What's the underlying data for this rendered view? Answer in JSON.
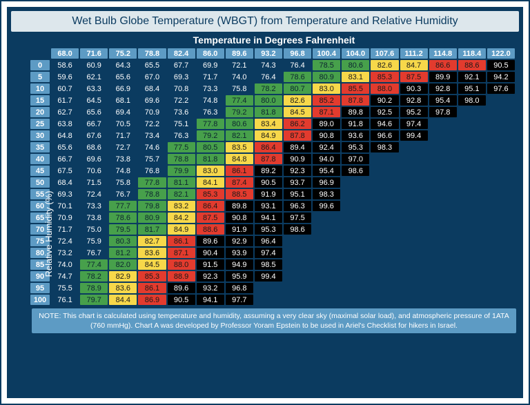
{
  "title": "Wet Bulb Globe Temperature (WBGT) from Temperature and Relative Humidity",
  "axis_top": "Temperature in Degrees Fahrenheit",
  "axis_left": "Relative Humidity (%)",
  "note": "NOTE: This chart is calculated using temperature and humidity, assuming a very clear sky (maximal solar load), and atmospheric pressure of 1ATA (760 mmHg). Chart A was developed by Professor Yoram Epstein to be used in Ariel's Checklist for hikers in Israel.",
  "colors": {
    "frame_bg": "#0b3b60",
    "title_bg": "#dde7ec",
    "title_fg": "#0b3b60",
    "header_bg": "#5d9bc4",
    "header_fg": "#ffffff",
    "none_bg": "#0b3b60",
    "none_fg": "#ffffff",
    "green_bg": "#47a04b",
    "yellow_bg": "#f7d84a",
    "red_bg": "#e23b2e",
    "black_bg": "#000000",
    "black_fg": "#ffffff"
  },
  "typography": {
    "title_fontsize": 16,
    "axis_fontsize": 14,
    "cell_fontsize": 11,
    "note_fontsize": 10.5,
    "font_family": "Arial"
  },
  "columns": [
    "68.0",
    "71.6",
    "75.2",
    "78.8",
    "82.4",
    "86.0",
    "89.6",
    "93.2",
    "96.8",
    "100.4",
    "104.0",
    "107.6",
    "111.2",
    "114.8",
    "118.4",
    "122.0"
  ],
  "row_headers": [
    "0",
    "5",
    "10",
    "15",
    "20",
    "25",
    "30",
    "35",
    "40",
    "45",
    "50",
    "55",
    "60",
    "65",
    "70",
    "75",
    "80",
    "85",
    "90",
    "95",
    "100"
  ],
  "cells": [
    [
      [
        "58.6",
        "none"
      ],
      [
        "60.9",
        "none"
      ],
      [
        "64.3",
        "none"
      ],
      [
        "65.5",
        "none"
      ],
      [
        "67.7",
        "none"
      ],
      [
        "69.9",
        "none"
      ],
      [
        "72.1",
        "none"
      ],
      [
        "74.3",
        "none"
      ],
      [
        "76.4",
        "none"
      ],
      [
        "78.5",
        "green"
      ],
      [
        "80.6",
        "green"
      ],
      [
        "82.6",
        "yellow"
      ],
      [
        "84.7",
        "yellow"
      ],
      [
        "86.6",
        "red"
      ],
      [
        "88.6",
        "red"
      ],
      [
        "90.5",
        "black"
      ]
    ],
    [
      [
        "59.6",
        "none"
      ],
      [
        "62.1",
        "none"
      ],
      [
        "65.6",
        "none"
      ],
      [
        "67.0",
        "none"
      ],
      [
        "69.3",
        "none"
      ],
      [
        "71.7",
        "none"
      ],
      [
        "74.0",
        "none"
      ],
      [
        "76.4",
        "none"
      ],
      [
        "78.6",
        "green"
      ],
      [
        "80.9",
        "green"
      ],
      [
        "83.1",
        "yellow"
      ],
      [
        "85.3",
        "red"
      ],
      [
        "87.5",
        "red"
      ],
      [
        "89.9",
        "black"
      ],
      [
        "92.1",
        "black"
      ],
      [
        "94.2",
        "black"
      ]
    ],
    [
      [
        "60.7",
        "none"
      ],
      [
        "63.3",
        "none"
      ],
      [
        "66.9",
        "none"
      ],
      [
        "68.4",
        "none"
      ],
      [
        "70.8",
        "none"
      ],
      [
        "73.3",
        "none"
      ],
      [
        "75.8",
        "none"
      ],
      [
        "78.2",
        "green"
      ],
      [
        "80.7",
        "green"
      ],
      [
        "83.0",
        "yellow"
      ],
      [
        "85.5",
        "red"
      ],
      [
        "88.0",
        "red"
      ],
      [
        "90.3",
        "black"
      ],
      [
        "92.8",
        "black"
      ],
      [
        "95.1",
        "black"
      ],
      [
        "97.6",
        "black"
      ]
    ],
    [
      [
        "61.7",
        "none"
      ],
      [
        "64.5",
        "none"
      ],
      [
        "68.1",
        "none"
      ],
      [
        "69.6",
        "none"
      ],
      [
        "72.2",
        "none"
      ],
      [
        "74.8",
        "none"
      ],
      [
        "77.4",
        "green"
      ],
      [
        "80.0",
        "green"
      ],
      [
        "82.6",
        "yellow"
      ],
      [
        "85.2",
        "red"
      ],
      [
        "87.8",
        "red"
      ],
      [
        "90.2",
        "black"
      ],
      [
        "92.8",
        "black"
      ],
      [
        "95.4",
        "black"
      ],
      [
        "98.0",
        "black"
      ],
      [
        "",
        "empty"
      ]
    ],
    [
      [
        "62.7",
        "none"
      ],
      [
        "65.6",
        "none"
      ],
      [
        "69.4",
        "none"
      ],
      [
        "70.9",
        "none"
      ],
      [
        "73.6",
        "none"
      ],
      [
        "76.3",
        "none"
      ],
      [
        "79.2",
        "green"
      ],
      [
        "81.8",
        "green"
      ],
      [
        "84.5",
        "yellow"
      ],
      [
        "87.1",
        "red"
      ],
      [
        "89.8",
        "black"
      ],
      [
        "92.5",
        "black"
      ],
      [
        "95.2",
        "black"
      ],
      [
        "97.8",
        "black"
      ],
      [
        "",
        "empty"
      ],
      [
        "",
        "empty"
      ]
    ],
    [
      [
        "63.8",
        "none"
      ],
      [
        "66.7",
        "none"
      ],
      [
        "70.5",
        "none"
      ],
      [
        "72.2",
        "none"
      ],
      [
        "75.1",
        "none"
      ],
      [
        "77.8",
        "green"
      ],
      [
        "80.6",
        "green"
      ],
      [
        "83.4",
        "yellow"
      ],
      [
        "86.2",
        "red"
      ],
      [
        "89.0",
        "black"
      ],
      [
        "91.8",
        "black"
      ],
      [
        "94.6",
        "black"
      ],
      [
        "97.4",
        "black"
      ],
      [
        "",
        "empty"
      ],
      [
        "",
        "empty"
      ],
      [
        "",
        "empty"
      ]
    ],
    [
      [
        "64.8",
        "none"
      ],
      [
        "67.6",
        "none"
      ],
      [
        "71.7",
        "none"
      ],
      [
        "73.4",
        "none"
      ],
      [
        "76.3",
        "none"
      ],
      [
        "79.2",
        "green"
      ],
      [
        "82.1",
        "green"
      ],
      [
        "84.9",
        "yellow"
      ],
      [
        "87.8",
        "red"
      ],
      [
        "90.8",
        "black"
      ],
      [
        "93.6",
        "black"
      ],
      [
        "96.6",
        "black"
      ],
      [
        "99.4",
        "black"
      ],
      [
        "",
        "empty"
      ],
      [
        "",
        "empty"
      ],
      [
        "",
        "empty"
      ]
    ],
    [
      [
        "65.6",
        "none"
      ],
      [
        "68.6",
        "none"
      ],
      [
        "72.7",
        "none"
      ],
      [
        "74.6",
        "none"
      ],
      [
        "77.5",
        "green"
      ],
      [
        "80.5",
        "green"
      ],
      [
        "83.5",
        "yellow"
      ],
      [
        "86.4",
        "red"
      ],
      [
        "89.4",
        "black"
      ],
      [
        "92.4",
        "black"
      ],
      [
        "95.3",
        "black"
      ],
      [
        "98.3",
        "black"
      ],
      [
        "",
        "empty"
      ],
      [
        "",
        "empty"
      ],
      [
        "",
        "empty"
      ],
      [
        "",
        "empty"
      ]
    ],
    [
      [
        "66.7",
        "none"
      ],
      [
        "69.6",
        "none"
      ],
      [
        "73.8",
        "none"
      ],
      [
        "75.7",
        "none"
      ],
      [
        "78.8",
        "green"
      ],
      [
        "81.8",
        "green"
      ],
      [
        "84.8",
        "yellow"
      ],
      [
        "87.8",
        "red"
      ],
      [
        "90.9",
        "black"
      ],
      [
        "94.0",
        "black"
      ],
      [
        "97.0",
        "black"
      ],
      [
        "",
        "empty"
      ],
      [
        "",
        "empty"
      ],
      [
        "",
        "empty"
      ],
      [
        "",
        "empty"
      ],
      [
        "",
        "empty"
      ]
    ],
    [
      [
        "67.5",
        "none"
      ],
      [
        "70.6",
        "none"
      ],
      [
        "74.8",
        "none"
      ],
      [
        "76.8",
        "none"
      ],
      [
        "79.9",
        "green"
      ],
      [
        "83.0",
        "yellow"
      ],
      [
        "86.1",
        "red"
      ],
      [
        "89.2",
        "black"
      ],
      [
        "92.3",
        "black"
      ],
      [
        "95.4",
        "black"
      ],
      [
        "98.6",
        "black"
      ],
      [
        "",
        "empty"
      ],
      [
        "",
        "empty"
      ],
      [
        "",
        "empty"
      ],
      [
        "",
        "empty"
      ],
      [
        "",
        "empty"
      ]
    ],
    [
      [
        "68.4",
        "none"
      ],
      [
        "71.5",
        "none"
      ],
      [
        "75.8",
        "none"
      ],
      [
        "77.8",
        "green"
      ],
      [
        "81.1",
        "green"
      ],
      [
        "84.1",
        "yellow"
      ],
      [
        "87.4",
        "red"
      ],
      [
        "90.5",
        "black"
      ],
      [
        "93.7",
        "black"
      ],
      [
        "96.9",
        "black"
      ],
      [
        "",
        "empty"
      ],
      [
        "",
        "empty"
      ],
      [
        "",
        "empty"
      ],
      [
        "",
        "empty"
      ],
      [
        "",
        "empty"
      ],
      [
        "",
        "empty"
      ]
    ],
    [
      [
        "69.3",
        "none"
      ],
      [
        "72.4",
        "none"
      ],
      [
        "76.7",
        "none"
      ],
      [
        "78.8",
        "green"
      ],
      [
        "82.1",
        "green"
      ],
      [
        "85.3",
        "red"
      ],
      [
        "88.5",
        "red"
      ],
      [
        "91.9",
        "black"
      ],
      [
        "95.1",
        "black"
      ],
      [
        "98.3",
        "black"
      ],
      [
        "",
        "empty"
      ],
      [
        "",
        "empty"
      ],
      [
        "",
        "empty"
      ],
      [
        "",
        "empty"
      ],
      [
        "",
        "empty"
      ],
      [
        "",
        "empty"
      ]
    ],
    [
      [
        "70.1",
        "none"
      ],
      [
        "73.3",
        "none"
      ],
      [
        "77.7",
        "green"
      ],
      [
        "79.8",
        "green"
      ],
      [
        "83.2",
        "yellow"
      ],
      [
        "86.4",
        "red"
      ],
      [
        "89.8",
        "black"
      ],
      [
        "93.1",
        "black"
      ],
      [
        "96.3",
        "black"
      ],
      [
        "99.6",
        "black"
      ],
      [
        "",
        "empty"
      ],
      [
        "",
        "empty"
      ],
      [
        "",
        "empty"
      ],
      [
        "",
        "empty"
      ],
      [
        "",
        "empty"
      ],
      [
        "",
        "empty"
      ]
    ],
    [
      [
        "70.9",
        "none"
      ],
      [
        "73.8",
        "none"
      ],
      [
        "78.6",
        "green"
      ],
      [
        "80.9",
        "green"
      ],
      [
        "84.2",
        "yellow"
      ],
      [
        "87.5",
        "red"
      ],
      [
        "90.8",
        "black"
      ],
      [
        "94.1",
        "black"
      ],
      [
        "97.5",
        "black"
      ],
      [
        "",
        "empty"
      ],
      [
        "",
        "empty"
      ],
      [
        "",
        "empty"
      ],
      [
        "",
        "empty"
      ],
      [
        "",
        "empty"
      ],
      [
        "",
        "empty"
      ],
      [
        "",
        "empty"
      ]
    ],
    [
      [
        "71.7",
        "none"
      ],
      [
        "75.0",
        "none"
      ],
      [
        "79.5",
        "green"
      ],
      [
        "81.7",
        "green"
      ],
      [
        "84.9",
        "yellow"
      ],
      [
        "88.6",
        "red"
      ],
      [
        "91.9",
        "black"
      ],
      [
        "95.3",
        "black"
      ],
      [
        "98.6",
        "black"
      ],
      [
        "",
        "empty"
      ],
      [
        "",
        "empty"
      ],
      [
        "",
        "empty"
      ],
      [
        "",
        "empty"
      ],
      [
        "",
        "empty"
      ],
      [
        "",
        "empty"
      ],
      [
        "",
        "empty"
      ]
    ],
    [
      [
        "72.4",
        "none"
      ],
      [
        "75.9",
        "none"
      ],
      [
        "80.3",
        "green"
      ],
      [
        "82.7",
        "yellow"
      ],
      [
        "86.1",
        "red"
      ],
      [
        "89.6",
        "black"
      ],
      [
        "92.9",
        "black"
      ],
      [
        "96.4",
        "black"
      ],
      [
        "",
        "empty"
      ],
      [
        "",
        "empty"
      ],
      [
        "",
        "empty"
      ],
      [
        "",
        "empty"
      ],
      [
        "",
        "empty"
      ],
      [
        "",
        "empty"
      ],
      [
        "",
        "empty"
      ],
      [
        "",
        "empty"
      ]
    ],
    [
      [
        "73.2",
        "none"
      ],
      [
        "76.7",
        "none"
      ],
      [
        "81.2",
        "green"
      ],
      [
        "83.6",
        "yellow"
      ],
      [
        "87.1",
        "red"
      ],
      [
        "90.4",
        "black"
      ],
      [
        "93.9",
        "black"
      ],
      [
        "97.4",
        "black"
      ],
      [
        "",
        "empty"
      ],
      [
        "",
        "empty"
      ],
      [
        "",
        "empty"
      ],
      [
        "",
        "empty"
      ],
      [
        "",
        "empty"
      ],
      [
        "",
        "empty"
      ],
      [
        "",
        "empty"
      ],
      [
        "",
        "empty"
      ]
    ],
    [
      [
        "74.0",
        "none"
      ],
      [
        "77.4",
        "green"
      ],
      [
        "82.0",
        "green"
      ],
      [
        "84.5",
        "yellow"
      ],
      [
        "88.0",
        "red"
      ],
      [
        "91.5",
        "black"
      ],
      [
        "94.9",
        "black"
      ],
      [
        "98.5",
        "black"
      ],
      [
        "",
        "empty"
      ],
      [
        "",
        "empty"
      ],
      [
        "",
        "empty"
      ],
      [
        "",
        "empty"
      ],
      [
        "",
        "empty"
      ],
      [
        "",
        "empty"
      ],
      [
        "",
        "empty"
      ],
      [
        "",
        "empty"
      ]
    ],
    [
      [
        "74.7",
        "none"
      ],
      [
        "78.2",
        "green"
      ],
      [
        "82.9",
        "yellow"
      ],
      [
        "85.3",
        "red"
      ],
      [
        "88.9",
        "red"
      ],
      [
        "92.3",
        "black"
      ],
      [
        "95.9",
        "black"
      ],
      [
        "99.4",
        "black"
      ],
      [
        "",
        "empty"
      ],
      [
        "",
        "empty"
      ],
      [
        "",
        "empty"
      ],
      [
        "",
        "empty"
      ],
      [
        "",
        "empty"
      ],
      [
        "",
        "empty"
      ],
      [
        "",
        "empty"
      ],
      [
        "",
        "empty"
      ]
    ],
    [
      [
        "75.5",
        "none"
      ],
      [
        "78.9",
        "green"
      ],
      [
        "83.6",
        "yellow"
      ],
      [
        "86.1",
        "red"
      ],
      [
        "89.6",
        "black"
      ],
      [
        "93.2",
        "black"
      ],
      [
        "96.8",
        "black"
      ],
      [
        "",
        "empty"
      ],
      [
        "",
        "empty"
      ],
      [
        "",
        "empty"
      ],
      [
        "",
        "empty"
      ],
      [
        "",
        "empty"
      ],
      [
        "",
        "empty"
      ],
      [
        "",
        "empty"
      ],
      [
        "",
        "empty"
      ],
      [
        "",
        "empty"
      ]
    ],
    [
      [
        "76.1",
        "none"
      ],
      [
        "79.7",
        "green"
      ],
      [
        "84.4",
        "yellow"
      ],
      [
        "86.9",
        "red"
      ],
      [
        "90.5",
        "black"
      ],
      [
        "94.1",
        "black"
      ],
      [
        "97.7",
        "black"
      ],
      [
        "",
        "empty"
      ],
      [
        "",
        "empty"
      ],
      [
        "",
        "empty"
      ],
      [
        "",
        "empty"
      ],
      [
        "",
        "empty"
      ],
      [
        "",
        "empty"
      ],
      [
        "",
        "empty"
      ],
      [
        "",
        "empty"
      ],
      [
        "",
        "empty"
      ]
    ]
  ]
}
